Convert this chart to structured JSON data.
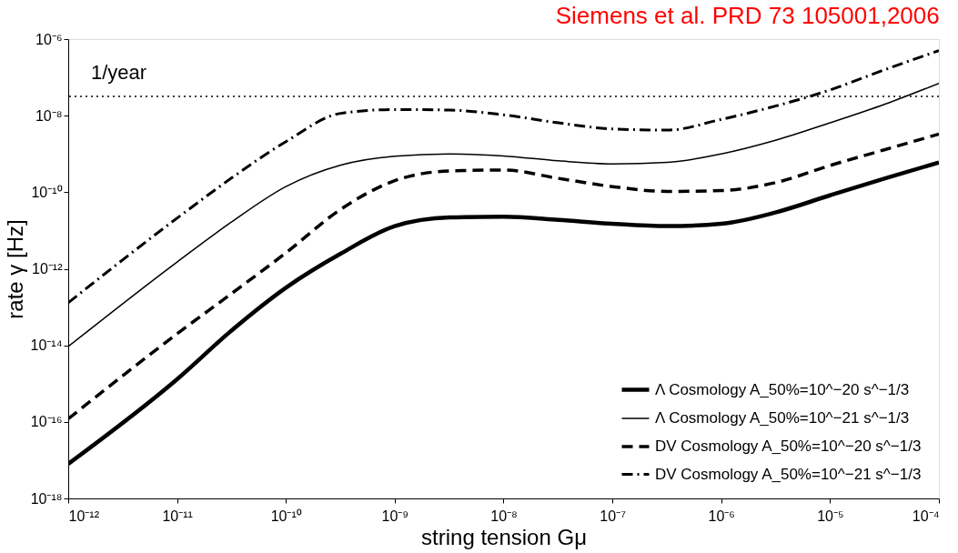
{
  "chart_data": {
    "type": "line",
    "title": "Siemens et al. PRD 73 105001,2006",
    "xlabel": "string tension  Gμ",
    "ylabel": "rate  γ [Hz]",
    "log": "xy",
    "grid": false,
    "legend": "bottom right",
    "xlim": [
      1e-12,
      0.0001
    ],
    "ylim": [
      1e-18,
      1e-06
    ],
    "xticks": [
      {
        "value": 1e-12,
        "label": "10⁻¹²"
      },
      {
        "value": 1e-11,
        "label": "10⁻¹¹"
      },
      {
        "value": 1e-10,
        "label": "10⁻¹⁰"
      },
      {
        "value": 1e-09,
        "label": "10⁻⁹"
      },
      {
        "value": 1e-08,
        "label": "10⁻⁸"
      },
      {
        "value": 1e-07,
        "label": "10⁻⁷"
      },
      {
        "value": 1e-06,
        "label": "10⁻⁶"
      },
      {
        "value": 1e-05,
        "label": "10⁻⁵"
      },
      {
        "value": 0.0001,
        "label": "10⁻⁴"
      }
    ],
    "yticks": [
      {
        "value": 1e-18,
        "label": "10⁻¹⁸"
      },
      {
        "value": 1e-16,
        "label": "10⁻¹⁶"
      },
      {
        "value": 1e-14,
        "label": "10⁻¹⁴"
      },
      {
        "value": 1e-12,
        "label": "10⁻¹²"
      },
      {
        "value": 1e-10,
        "label": "10⁻¹⁰"
      },
      {
        "value": 1e-08,
        "label": "10⁻⁸"
      },
      {
        "value": 1e-06,
        "label": "10⁻⁶"
      }
    ],
    "x": [
      1e-12,
      1e-11,
      3.2e-11,
      1e-10,
      3.2e-10,
      1e-09,
      3.2e-09,
      1e-08,
      3.2e-08,
      1e-07,
      3.2e-07,
      1e-06,
      3.2e-06,
      1e-05,
      3.2e-05,
      0.0001
    ],
    "series": [
      {
        "name": "Λ Cosmology A_50%=10^−20 s^−1/3",
        "color": "#000000",
        "line_style": "solid",
        "values": [
          8e-18,
          1.3e-15,
          2.5e-14,
          3.2e-13,
          2.5e-12,
          1.3e-11,
          2.2e-11,
          2.3e-11,
          1.9e-11,
          1.5e-11,
          1.3e-11,
          1.5e-11,
          3e-11,
          8.3e-11,
          2.3e-10,
          6e-10
        ]
      },
      {
        "name": "Λ Cosmology A_50%=10^−21 s^−1/3",
        "color": "#000000",
        "line_style": "solid",
        "values": [
          9.3e-15,
          1.5e-12,
          1.7e-11,
          1.4e-10,
          5.1e-10,
          8.7e-10,
          1e-09,
          8.9e-10,
          6.6e-10,
          5.5e-10,
          6e-10,
          1e-09,
          2.3e-09,
          6.5e-09,
          2e-08,
          7e-08
        ]
      },
      {
        "name": "DV Cosmology A_50%=10^−20 s^−1/3",
        "color": "#000000",
        "line_style": "dashed",
        "values": [
          1.2e-16,
          2e-14,
          2.3e-13,
          2.6e-12,
          3.6e-11,
          2e-10,
          3.6e-10,
          3.8e-10,
          2.3e-10,
          1.4e-10,
          1.05e-10,
          1.1e-10,
          1.8e-10,
          5e-10,
          1.3e-09,
          3.3e-09
        ]
      },
      {
        "name": "DV Cosmology A_50%=10^−21 s^−1/3",
        "color": "#000000",
        "line_style": "dashdot",
        "values": [
          1.3e-13,
          2.1e-11,
          2.4e-10,
          2.1e-09,
          1.15e-08,
          1.45e-08,
          1.4e-08,
          1.05e-08,
          6.5e-09,
          4.5e-09,
          4.2e-09,
          8e-09,
          1.8e-08,
          4.7e-08,
          1.6e-07,
          5e-07
        ]
      }
    ],
    "ref_lines": [
      {
        "axis": "y",
        "value": 3.17e-08,
        "label": "1/year",
        "color": "#000000",
        "line_style": "dotted"
      }
    ]
  }
}
